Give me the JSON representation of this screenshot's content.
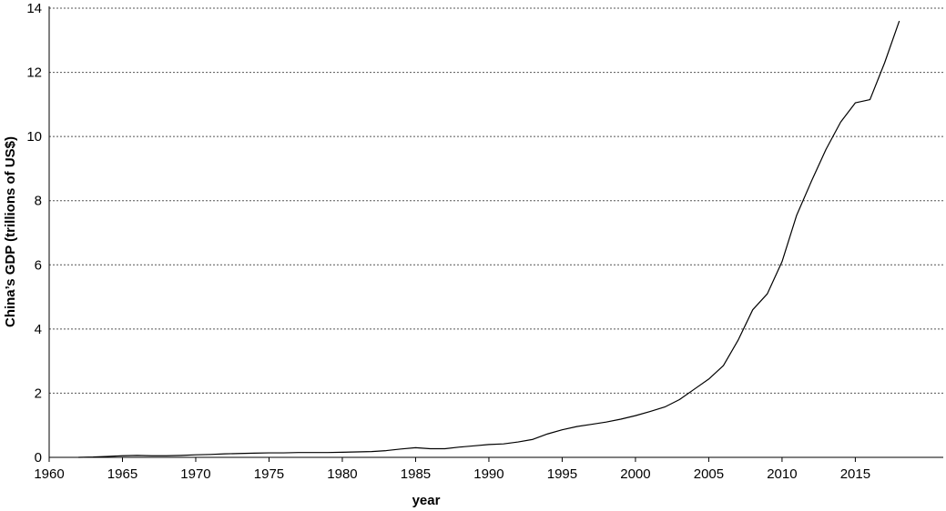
{
  "chart_data": {
    "type": "line",
    "title": "",
    "xlabel": "year",
    "ylabel": "China’s GDP (trillions of US$)",
    "xlim": [
      1960,
      2021
    ],
    "ylim": [
      0,
      14
    ],
    "xticks": [
      1960,
      1965,
      1970,
      1975,
      1980,
      1985,
      1990,
      1995,
      2000,
      2005,
      2010,
      2015
    ],
    "yticks": [
      0,
      2,
      4,
      6,
      8,
      10,
      12,
      14
    ],
    "grid": "horizontal-dotted",
    "series": [
      {
        "x": [
          1962,
          1963,
          1964,
          1965,
          1966,
          1967,
          1968,
          1969,
          1970,
          1971,
          1972,
          1973,
          1974,
          1975,
          1976,
          1977,
          1978,
          1979,
          1980,
          1981,
          1982,
          1983,
          1984,
          1985,
          1986,
          1987,
          1988,
          1989,
          1990,
          1991,
          1992,
          1993,
          1994,
          1995,
          1996,
          1997,
          1998,
          1999,
          2000,
          2001,
          2002,
          2003,
          2004,
          2005,
          2006,
          2007,
          2008,
          2009,
          2010,
          2011,
          2012,
          2013,
          2014,
          2015,
          2016,
          2017,
          2018
        ],
        "values": [
          0.0,
          0.01,
          0.03,
          0.05,
          0.06,
          0.05,
          0.05,
          0.06,
          0.08,
          0.09,
          0.11,
          0.12,
          0.13,
          0.14,
          0.14,
          0.15,
          0.15,
          0.15,
          0.16,
          0.17,
          0.18,
          0.21,
          0.26,
          0.3,
          0.27,
          0.27,
          0.32,
          0.36,
          0.4,
          0.42,
          0.48,
          0.56,
          0.73,
          0.86,
          0.96,
          1.03,
          1.1,
          1.19,
          1.3,
          1.43,
          1.57,
          1.8,
          2.12,
          2.44,
          2.86,
          3.65,
          4.6,
          5.1,
          6.1,
          7.55,
          8.6,
          9.6,
          10.45,
          11.05,
          11.15,
          12.3,
          13.6
        ]
      }
    ]
  }
}
